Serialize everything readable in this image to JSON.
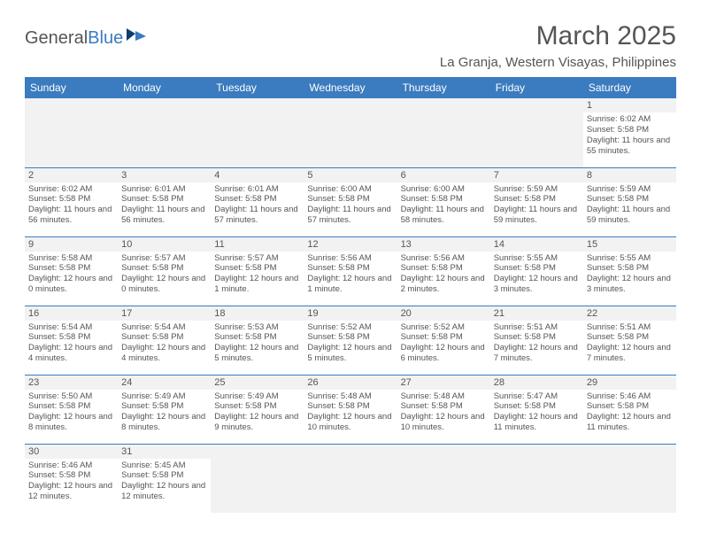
{
  "logo": {
    "text1": "General",
    "text2": "Blue"
  },
  "title": "March 2025",
  "subtitle": "La Granja, Western Visayas, Philippines",
  "colors": {
    "header_bg": "#3b7bbf",
    "header_text": "#ffffff",
    "daynum_bg": "#f2f2f2",
    "body_text": "#555555",
    "row_border": "#3b7bbf",
    "page_bg": "#ffffff"
  },
  "typography": {
    "title_fontsize": 30,
    "subtitle_fontsize": 15,
    "dayheader_fontsize": 12,
    "cell_fontsize": 9.5
  },
  "day_headers": [
    "Sunday",
    "Monday",
    "Tuesday",
    "Wednesday",
    "Thursday",
    "Friday",
    "Saturday"
  ],
  "weeks": [
    [
      null,
      null,
      null,
      null,
      null,
      null,
      {
        "n": "1",
        "sr": "Sunrise: 6:02 AM",
        "ss": "Sunset: 5:58 PM",
        "dl": "Daylight: 11 hours and 55 minutes."
      }
    ],
    [
      {
        "n": "2",
        "sr": "Sunrise: 6:02 AM",
        "ss": "Sunset: 5:58 PM",
        "dl": "Daylight: 11 hours and 56 minutes."
      },
      {
        "n": "3",
        "sr": "Sunrise: 6:01 AM",
        "ss": "Sunset: 5:58 PM",
        "dl": "Daylight: 11 hours and 56 minutes."
      },
      {
        "n": "4",
        "sr": "Sunrise: 6:01 AM",
        "ss": "Sunset: 5:58 PM",
        "dl": "Daylight: 11 hours and 57 minutes."
      },
      {
        "n": "5",
        "sr": "Sunrise: 6:00 AM",
        "ss": "Sunset: 5:58 PM",
        "dl": "Daylight: 11 hours and 57 minutes."
      },
      {
        "n": "6",
        "sr": "Sunrise: 6:00 AM",
        "ss": "Sunset: 5:58 PM",
        "dl": "Daylight: 11 hours and 58 minutes."
      },
      {
        "n": "7",
        "sr": "Sunrise: 5:59 AM",
        "ss": "Sunset: 5:58 PM",
        "dl": "Daylight: 11 hours and 59 minutes."
      },
      {
        "n": "8",
        "sr": "Sunrise: 5:59 AM",
        "ss": "Sunset: 5:58 PM",
        "dl": "Daylight: 11 hours and 59 minutes."
      }
    ],
    [
      {
        "n": "9",
        "sr": "Sunrise: 5:58 AM",
        "ss": "Sunset: 5:58 PM",
        "dl": "Daylight: 12 hours and 0 minutes."
      },
      {
        "n": "10",
        "sr": "Sunrise: 5:57 AM",
        "ss": "Sunset: 5:58 PM",
        "dl": "Daylight: 12 hours and 0 minutes."
      },
      {
        "n": "11",
        "sr": "Sunrise: 5:57 AM",
        "ss": "Sunset: 5:58 PM",
        "dl": "Daylight: 12 hours and 1 minute."
      },
      {
        "n": "12",
        "sr": "Sunrise: 5:56 AM",
        "ss": "Sunset: 5:58 PM",
        "dl": "Daylight: 12 hours and 1 minute."
      },
      {
        "n": "13",
        "sr": "Sunrise: 5:56 AM",
        "ss": "Sunset: 5:58 PM",
        "dl": "Daylight: 12 hours and 2 minutes."
      },
      {
        "n": "14",
        "sr": "Sunrise: 5:55 AM",
        "ss": "Sunset: 5:58 PM",
        "dl": "Daylight: 12 hours and 3 minutes."
      },
      {
        "n": "15",
        "sr": "Sunrise: 5:55 AM",
        "ss": "Sunset: 5:58 PM",
        "dl": "Daylight: 12 hours and 3 minutes."
      }
    ],
    [
      {
        "n": "16",
        "sr": "Sunrise: 5:54 AM",
        "ss": "Sunset: 5:58 PM",
        "dl": "Daylight: 12 hours and 4 minutes."
      },
      {
        "n": "17",
        "sr": "Sunrise: 5:54 AM",
        "ss": "Sunset: 5:58 PM",
        "dl": "Daylight: 12 hours and 4 minutes."
      },
      {
        "n": "18",
        "sr": "Sunrise: 5:53 AM",
        "ss": "Sunset: 5:58 PM",
        "dl": "Daylight: 12 hours and 5 minutes."
      },
      {
        "n": "19",
        "sr": "Sunrise: 5:52 AM",
        "ss": "Sunset: 5:58 PM",
        "dl": "Daylight: 12 hours and 5 minutes."
      },
      {
        "n": "20",
        "sr": "Sunrise: 5:52 AM",
        "ss": "Sunset: 5:58 PM",
        "dl": "Daylight: 12 hours and 6 minutes."
      },
      {
        "n": "21",
        "sr": "Sunrise: 5:51 AM",
        "ss": "Sunset: 5:58 PM",
        "dl": "Daylight: 12 hours and 7 minutes."
      },
      {
        "n": "22",
        "sr": "Sunrise: 5:51 AM",
        "ss": "Sunset: 5:58 PM",
        "dl": "Daylight: 12 hours and 7 minutes."
      }
    ],
    [
      {
        "n": "23",
        "sr": "Sunrise: 5:50 AM",
        "ss": "Sunset: 5:58 PM",
        "dl": "Daylight: 12 hours and 8 minutes."
      },
      {
        "n": "24",
        "sr": "Sunrise: 5:49 AM",
        "ss": "Sunset: 5:58 PM",
        "dl": "Daylight: 12 hours and 8 minutes."
      },
      {
        "n": "25",
        "sr": "Sunrise: 5:49 AM",
        "ss": "Sunset: 5:58 PM",
        "dl": "Daylight: 12 hours and 9 minutes."
      },
      {
        "n": "26",
        "sr": "Sunrise: 5:48 AM",
        "ss": "Sunset: 5:58 PM",
        "dl": "Daylight: 12 hours and 10 minutes."
      },
      {
        "n": "27",
        "sr": "Sunrise: 5:48 AM",
        "ss": "Sunset: 5:58 PM",
        "dl": "Daylight: 12 hours and 10 minutes."
      },
      {
        "n": "28",
        "sr": "Sunrise: 5:47 AM",
        "ss": "Sunset: 5:58 PM",
        "dl": "Daylight: 12 hours and 11 minutes."
      },
      {
        "n": "29",
        "sr": "Sunrise: 5:46 AM",
        "ss": "Sunset: 5:58 PM",
        "dl": "Daylight: 12 hours and 11 minutes."
      }
    ],
    [
      {
        "n": "30",
        "sr": "Sunrise: 5:46 AM",
        "ss": "Sunset: 5:58 PM",
        "dl": "Daylight: 12 hours and 12 minutes."
      },
      {
        "n": "31",
        "sr": "Sunrise: 5:45 AM",
        "ss": "Sunset: 5:58 PM",
        "dl": "Daylight: 12 hours and 12 minutes."
      },
      null,
      null,
      null,
      null,
      null
    ]
  ]
}
